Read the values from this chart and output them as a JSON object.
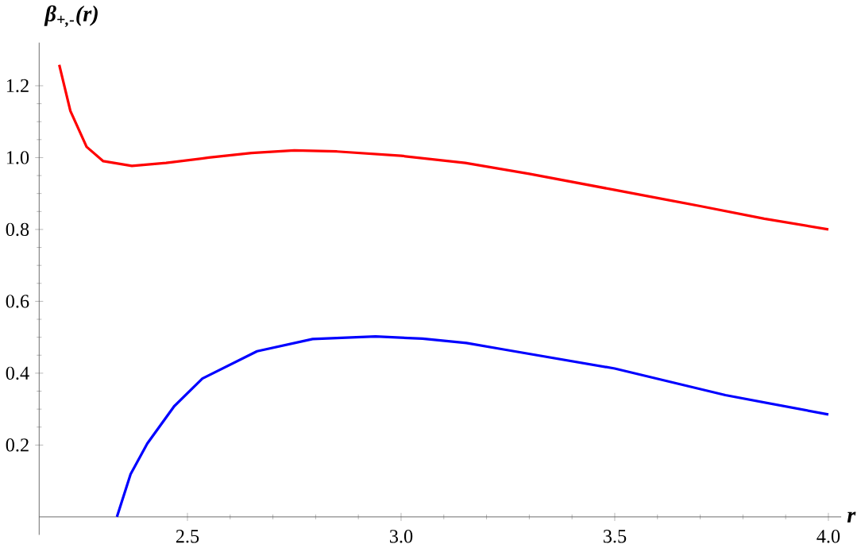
{
  "chart_data": {
    "type": "line",
    "xlabel": "r",
    "ylabel": "β$_{+,-}$(r)",
    "grid": false,
    "marker": "none",
    "line_style": "solid",
    "xlim": [
      2.153,
      4.03
    ],
    "ylim": [
      -0.05,
      1.32
    ],
    "xticks": [
      2.5,
      {
        "value": 3.0,
        "label": "3.0"
      },
      3.5,
      {
        "value": 4.0,
        "label": "4.0"
      }
    ],
    "yticks": [
      0.2,
      0.4,
      0.6,
      0.8,
      {
        "value": 1.0,
        "label": "1.0"
      },
      1.2
    ],
    "series": [
      {
        "color": "#ff0000",
        "x": [
          2.2,
          2.226,
          2.264,
          2.303,
          2.37,
          2.45,
          2.55,
          2.65,
          2.75,
          2.85,
          3.0,
          3.15,
          3.3,
          3.5,
          3.7,
          3.85,
          4.0
        ],
        "values": [
          1.258,
          1.13,
          1.03,
          0.99,
          0.977,
          0.985,
          1.0,
          1.013,
          1.02,
          1.017,
          1.005,
          0.985,
          0.955,
          0.91,
          0.865,
          0.83,
          0.8
        ]
      },
      {
        "color": "#0000ff",
        "x": [
          2.335,
          2.367,
          2.406,
          2.469,
          2.535,
          2.663,
          2.793,
          2.94,
          3.05,
          3.153,
          3.24,
          3.5,
          3.759,
          4.0
        ],
        "values": [
          0.0,
          0.119,
          0.204,
          0.308,
          0.385,
          0.461,
          0.495,
          0.502,
          0.496,
          0.484,
          0.466,
          0.413,
          0.339,
          0.285
        ]
      }
    ]
  }
}
